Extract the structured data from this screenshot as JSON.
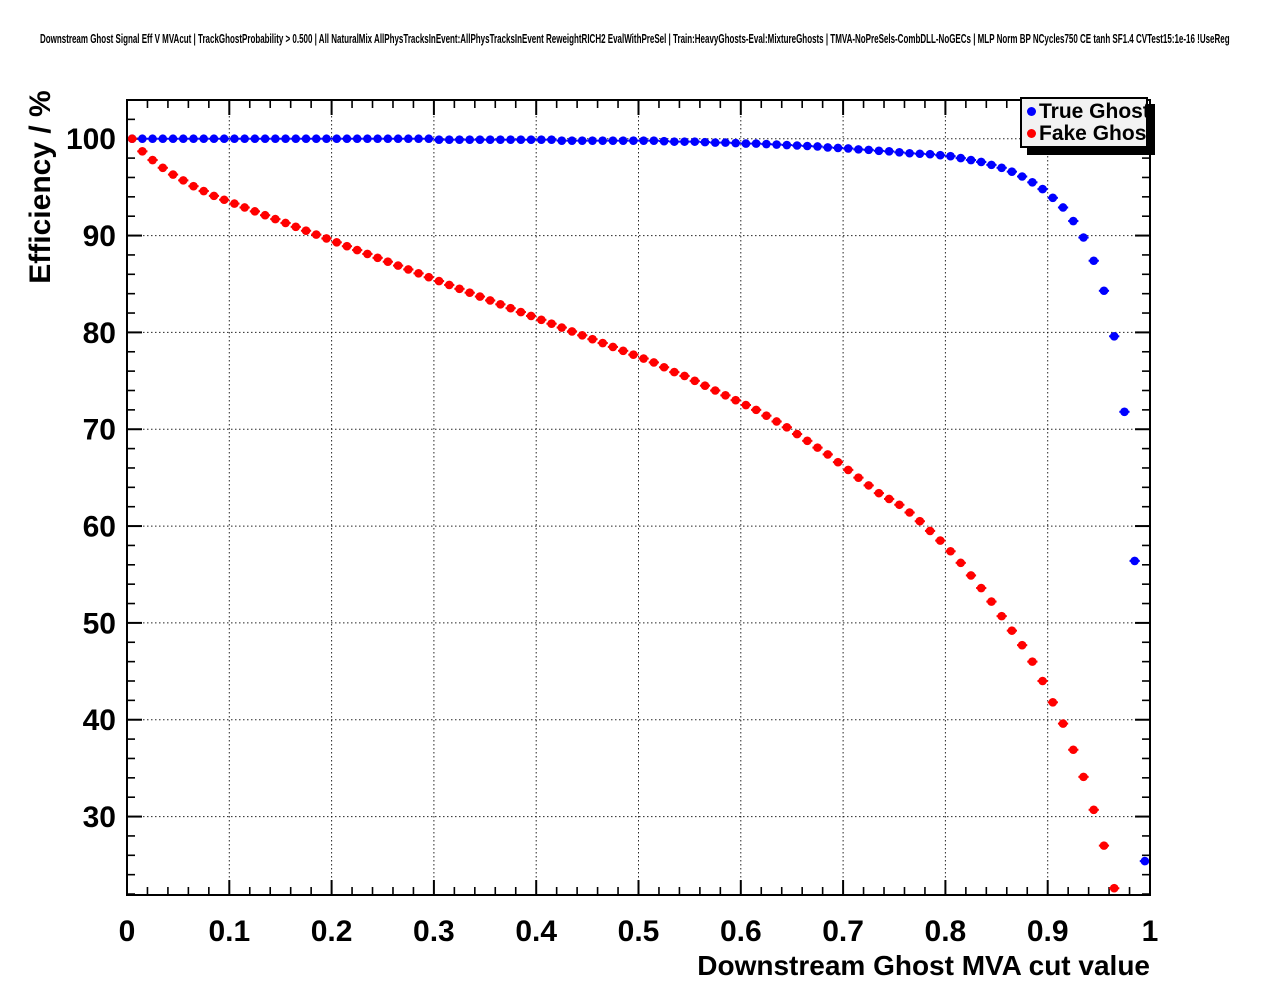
{
  "chart_data": {
    "type": "scatter",
    "title": "Downstream Ghost Signal Eff V MVAcut | TrackGhostProbability > 0.500 | All NaturalMix AllPhysTracksInEvent:AllPhysTracksInEvent ReweightRICH2 EvalWithPreSel | Train:HeavyGhosts-Eval:MixtureGhosts | TMVA-NoPreSels-CombDLL-NoGECs | MLP Norm BP NCycles750 CE tanh SF1.4 CVTest15:1e-16 !UseReg",
    "xlabel": "Downstream Ghost MVA cut value",
    "ylabel": "Efficiency / %",
    "xlim": [
      0,
      1
    ],
    "ylim": [
      21.9,
      104.0
    ],
    "x_tick_values": [
      0,
      0.1,
      0.2,
      0.3,
      0.4,
      0.5,
      0.6,
      0.7,
      0.8,
      0.9,
      1
    ],
    "x_tick_labels": [
      "0",
      "0.1",
      "0.2",
      "0.3",
      "0.4",
      "0.5",
      "0.6",
      "0.7",
      "0.8",
      "0.9",
      "1"
    ],
    "y_tick_values": [
      30,
      40,
      50,
      60,
      70,
      80,
      90,
      100
    ],
    "y_tick_labels": [
      "30",
      "40",
      "50",
      "60",
      "70",
      "80",
      "90",
      "100"
    ],
    "x_minor_step": 0.02,
    "y_minor_step": 2,
    "grid": true,
    "x_error_halfwidth": 0.005,
    "legend": {
      "position": "top-right",
      "entries": [
        {
          "label": "True Ghost",
          "color": "#0000ff",
          "marker": "dot-icon"
        },
        {
          "label": "Fake Ghost",
          "color": "#ff0000",
          "marker": "dot-icon"
        }
      ]
    },
    "series": [
      {
        "name": "True Ghost",
        "color": "#0000ff",
        "x": [
          0.005,
          0.015,
          0.025,
          0.035,
          0.045,
          0.055,
          0.065,
          0.075,
          0.085,
          0.095,
          0.105,
          0.115,
          0.125,
          0.135,
          0.145,
          0.155,
          0.165,
          0.175,
          0.185,
          0.195,
          0.205,
          0.215,
          0.225,
          0.235,
          0.245,
          0.255,
          0.265,
          0.275,
          0.285,
          0.295,
          0.305,
          0.315,
          0.325,
          0.335,
          0.345,
          0.355,
          0.365,
          0.375,
          0.385,
          0.395,
          0.405,
          0.415,
          0.425,
          0.435,
          0.445,
          0.455,
          0.465,
          0.475,
          0.485,
          0.495,
          0.505,
          0.515,
          0.525,
          0.535,
          0.545,
          0.555,
          0.565,
          0.575,
          0.585,
          0.595,
          0.605,
          0.615,
          0.625,
          0.635,
          0.645,
          0.655,
          0.665,
          0.675,
          0.685,
          0.695,
          0.705,
          0.715,
          0.725,
          0.735,
          0.745,
          0.755,
          0.765,
          0.775,
          0.785,
          0.795,
          0.805,
          0.815,
          0.825,
          0.835,
          0.845,
          0.855,
          0.865,
          0.875,
          0.885,
          0.895,
          0.905,
          0.915,
          0.925,
          0.935,
          0.945,
          0.955,
          0.965,
          0.975,
          0.985,
          0.995
        ],
        "y": [
          100,
          100,
          100,
          100,
          100,
          100,
          100,
          100,
          100,
          100,
          100,
          100,
          100,
          100,
          100,
          100,
          100,
          100,
          100,
          100,
          100,
          100,
          100,
          100,
          100,
          100,
          100,
          100,
          100,
          100,
          99.9,
          99.9,
          99.9,
          99.9,
          99.9,
          99.9,
          99.9,
          99.9,
          99.9,
          99.9,
          99.9,
          99.9,
          99.8,
          99.8,
          99.8,
          99.8,
          99.8,
          99.8,
          99.8,
          99.8,
          99.8,
          99.8,
          99.75,
          99.7,
          99.7,
          99.7,
          99.65,
          99.6,
          99.6,
          99.55,
          99.5,
          99.5,
          99.45,
          99.4,
          99.35,
          99.3,
          99.25,
          99.2,
          99.1,
          99.05,
          99.0,
          98.9,
          98.85,
          98.75,
          98.7,
          98.6,
          98.5,
          98.45,
          98.4,
          98.3,
          98.2,
          98.0,
          97.8,
          97.6,
          97.3,
          97.0,
          96.6,
          96.1,
          95.5,
          94.8,
          93.9,
          92.9,
          91.5,
          89.8,
          87.4,
          84.3,
          79.6,
          71.8,
          56.4,
          25.4
        ]
      },
      {
        "name": "Fake Ghost",
        "color": "#ff0000",
        "x": [
          0.005,
          0.015,
          0.025,
          0.035,
          0.045,
          0.055,
          0.065,
          0.075,
          0.085,
          0.095,
          0.105,
          0.115,
          0.125,
          0.135,
          0.145,
          0.155,
          0.165,
          0.175,
          0.185,
          0.195,
          0.205,
          0.215,
          0.225,
          0.235,
          0.245,
          0.255,
          0.265,
          0.275,
          0.285,
          0.295,
          0.305,
          0.315,
          0.325,
          0.335,
          0.345,
          0.355,
          0.365,
          0.375,
          0.385,
          0.395,
          0.405,
          0.415,
          0.425,
          0.435,
          0.445,
          0.455,
          0.465,
          0.475,
          0.485,
          0.495,
          0.505,
          0.515,
          0.525,
          0.535,
          0.545,
          0.555,
          0.565,
          0.575,
          0.585,
          0.595,
          0.605,
          0.615,
          0.625,
          0.635,
          0.645,
          0.655,
          0.665,
          0.675,
          0.685,
          0.695,
          0.705,
          0.715,
          0.725,
          0.735,
          0.745,
          0.755,
          0.765,
          0.775,
          0.785,
          0.795,
          0.805,
          0.815,
          0.825,
          0.835,
          0.845,
          0.855,
          0.865,
          0.875,
          0.885,
          0.895,
          0.905,
          0.915,
          0.925,
          0.935,
          0.945,
          0.955,
          0.965
        ],
        "y": [
          100,
          98.7,
          97.8,
          97.0,
          96.3,
          95.7,
          95.1,
          94.6,
          94.1,
          93.7,
          93.3,
          92.9,
          92.5,
          92.1,
          91.7,
          91.3,
          90.9,
          90.5,
          90.1,
          89.7,
          89.3,
          88.9,
          88.5,
          88.1,
          87.7,
          87.3,
          86.9,
          86.5,
          86.1,
          85.7,
          85.3,
          84.9,
          84.5,
          84.1,
          83.7,
          83.3,
          82.9,
          82.5,
          82.1,
          81.7,
          81.3,
          80.9,
          80.5,
          80.1,
          79.7,
          79.3,
          78.9,
          78.5,
          78.1,
          77.7,
          77.3,
          76.9,
          76.4,
          75.9,
          75.5,
          75.0,
          74.5,
          74.0,
          73.5,
          73.0,
          72.5,
          72.0,
          71.4,
          70.8,
          70.2,
          69.5,
          68.8,
          68.1,
          67.4,
          66.6,
          65.8,
          65.0,
          64.2,
          63.4,
          62.8,
          62.2,
          61.4,
          60.5,
          59.5,
          58.5,
          57.4,
          56.2,
          54.9,
          53.6,
          52.2,
          50.7,
          49.2,
          47.7,
          46.0,
          44.0,
          41.8,
          39.6,
          36.9,
          34.1,
          30.7,
          27.0,
          22.6
        ]
      }
    ]
  },
  "colors": {
    "background": "#ffffff",
    "frame": "#000000",
    "grid": "#000000",
    "legend_bg": "#f2f2f2",
    "legend_shadow": "#000000",
    "text": "#000000"
  }
}
